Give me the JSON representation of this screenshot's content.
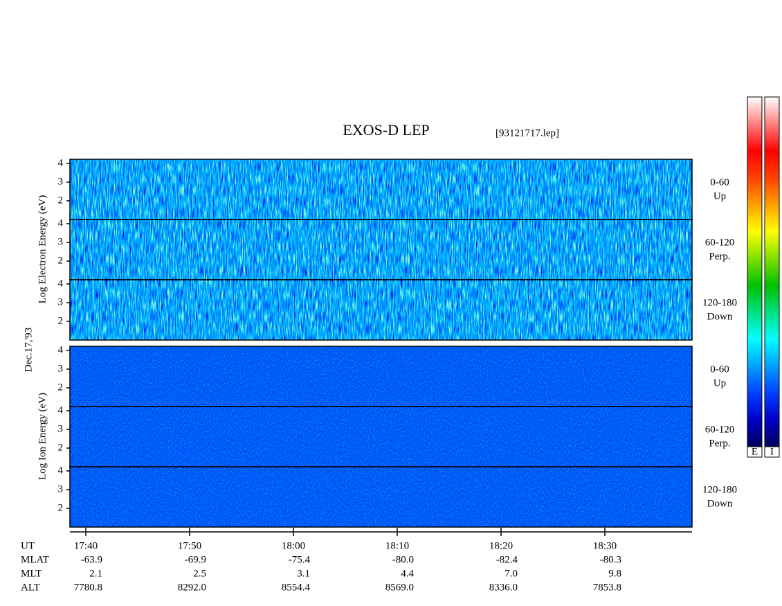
{
  "chart_data": {
    "type": "spectrogram",
    "title": "EXOS-D LEP",
    "subtitle": "[93121717.lep]",
    "date_label": "Dec.17,'93",
    "groups": [
      {
        "label": "Log Electron Energy (eV)",
        "colorbar_label": "E"
      },
      {
        "label": "Log Ion Energy (eV)",
        "colorbar_label": "I"
      }
    ],
    "panels": [
      {
        "group": 0,
        "range": "0-60",
        "direction": "Up"
      },
      {
        "group": 0,
        "range": "60-120",
        "direction": "Perp."
      },
      {
        "group": 0,
        "range": "120-180",
        "direction": "Down"
      },
      {
        "group": 1,
        "range": "0-60",
        "direction": "Up"
      },
      {
        "group": 1,
        "range": "60-120",
        "direction": "Perp."
      },
      {
        "group": 1,
        "range": "120-180",
        "direction": "Down"
      }
    ],
    "ylim": [
      1.0,
      4.22
    ],
    "yticks": [
      2,
      3,
      4
    ],
    "xlim": [
      "17:38:28",
      "18:38:24"
    ],
    "xticks": [
      "17:40",
      "17:50",
      "18:00",
      "18:10",
      "18:20",
      "18:30"
    ],
    "x_label": "UT",
    "ephemeris": [
      {
        "label": "MLAT",
        "values": [
          "-63.9",
          "-69.9",
          "-75.4",
          "-80.0",
          "-82.4",
          "-80.3"
        ]
      },
      {
        "label": "MLT",
        "values": [
          "2.1",
          "2.5",
          "3.1",
          "4.4",
          "7.0",
          "9.8"
        ]
      },
      {
        "label": "ALT",
        "values": [
          "7780.8",
          "8292.0",
          "8554.4",
          "8569.0",
          "8336.0",
          "7853.8"
        ]
      }
    ],
    "colormap": [
      "#00005a",
      "#0000c8",
      "#0040ff",
      "#00a0ff",
      "#00ffff",
      "#00e080",
      "#00c000",
      "#80e000",
      "#ffff00",
      "#ffa000",
      "#ff4000",
      "#ff0000",
      "#ff8080",
      "#ffffff"
    ]
  }
}
